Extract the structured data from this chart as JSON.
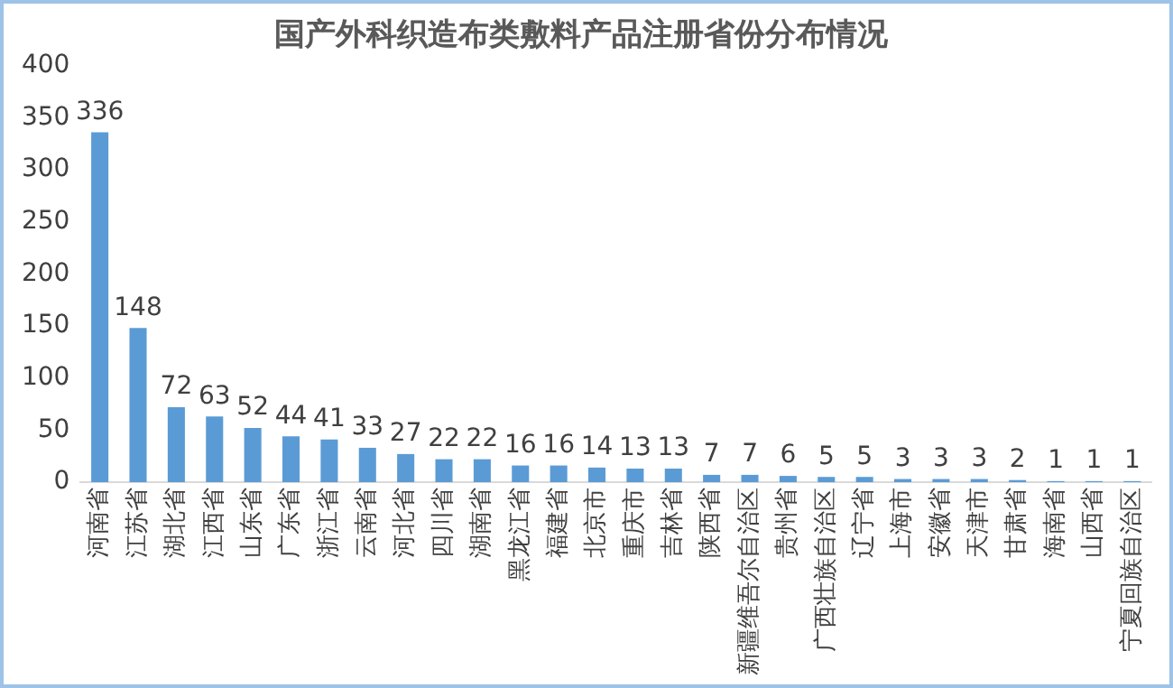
{
  "chart_data": {
    "type": "bar",
    "title": "国产外科织造布类敷料产品注册省份分布情况",
    "categories": [
      "河南省",
      "江苏省",
      "湖北省",
      "江西省",
      "山东省",
      "广东省",
      "浙江省",
      "云南省",
      "河北省",
      "四川省",
      "湖南省",
      "黑龙江省",
      "福建省",
      "北京市",
      "重庆市",
      "吉林省",
      "陕西省",
      "新疆维吾尔自治区",
      "贵州省",
      "广西壮族自治区",
      "辽宁省",
      "上海市",
      "安徽省",
      "天津市",
      "甘肃省",
      "海南省",
      "山西省",
      "宁夏回族自治区"
    ],
    "values": [
      336,
      148,
      72,
      63,
      52,
      44,
      41,
      33,
      27,
      22,
      22,
      16,
      16,
      14,
      13,
      13,
      7,
      7,
      6,
      5,
      5,
      3,
      3,
      3,
      2,
      1,
      1,
      1
    ],
    "color": "#5b9bd5",
    "ylim": [
      0,
      400
    ],
    "yticks": [
      0,
      50,
      100,
      150,
      200,
      250,
      300,
      350,
      400
    ],
    "grid": false,
    "legend": false,
    "data_labels": true
  }
}
